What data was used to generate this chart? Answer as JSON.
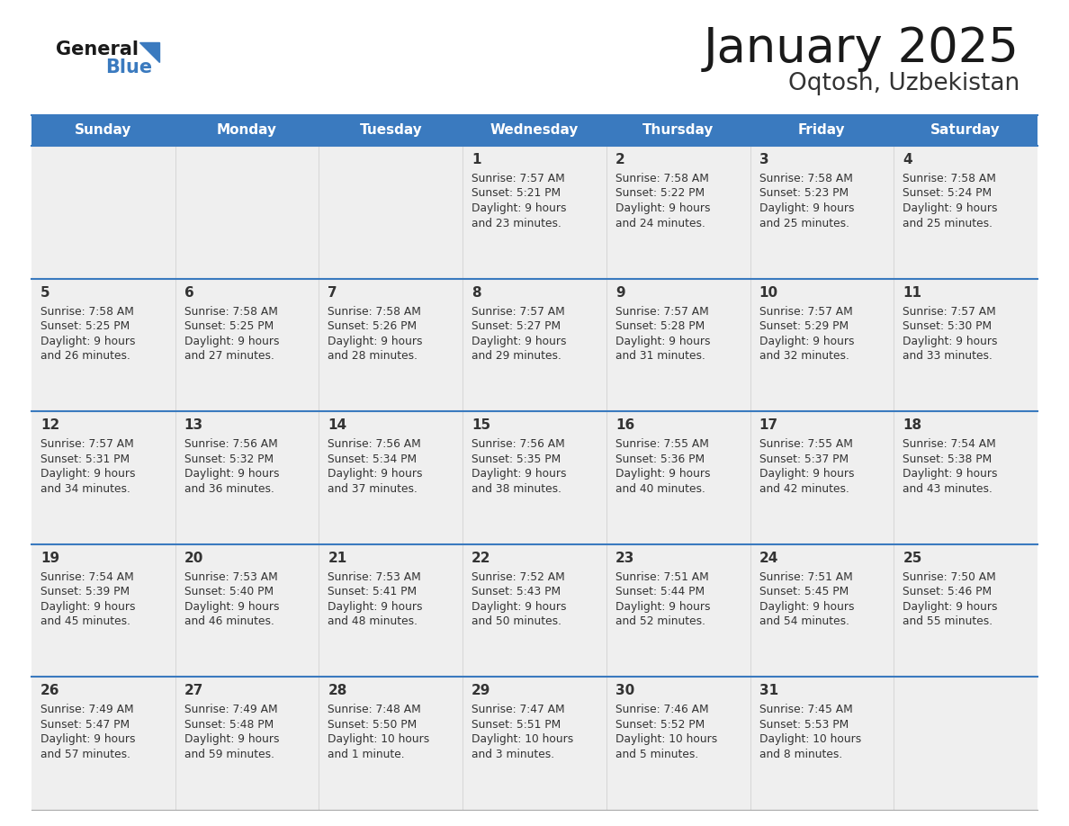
{
  "title": "January 2025",
  "subtitle": "Oqtosh, Uzbekistan",
  "days_of_week": [
    "Sunday",
    "Monday",
    "Tuesday",
    "Wednesday",
    "Thursday",
    "Friday",
    "Saturday"
  ],
  "header_bg": "#3a7abf",
  "header_text": "#ffffff",
  "cell_bg": "#efefef",
  "separator_color": "#3a7abf",
  "text_color": "#333333",
  "title_color": "#1a1a1a",
  "calendar_data": [
    [
      null,
      null,
      null,
      {
        "day": 1,
        "sunrise": "7:57 AM",
        "sunset": "5:21 PM",
        "dl1": "9 hours",
        "dl2": "and 23 minutes."
      },
      {
        "day": 2,
        "sunrise": "7:58 AM",
        "sunset": "5:22 PM",
        "dl1": "9 hours",
        "dl2": "and 24 minutes."
      },
      {
        "day": 3,
        "sunrise": "7:58 AM",
        "sunset": "5:23 PM",
        "dl1": "9 hours",
        "dl2": "and 25 minutes."
      },
      {
        "day": 4,
        "sunrise": "7:58 AM",
        "sunset": "5:24 PM",
        "dl1": "9 hours",
        "dl2": "and 25 minutes."
      }
    ],
    [
      {
        "day": 5,
        "sunrise": "7:58 AM",
        "sunset": "5:25 PM",
        "dl1": "9 hours",
        "dl2": "and 26 minutes."
      },
      {
        "day": 6,
        "sunrise": "7:58 AM",
        "sunset": "5:25 PM",
        "dl1": "9 hours",
        "dl2": "and 27 minutes."
      },
      {
        "day": 7,
        "sunrise": "7:58 AM",
        "sunset": "5:26 PM",
        "dl1": "9 hours",
        "dl2": "and 28 minutes."
      },
      {
        "day": 8,
        "sunrise": "7:57 AM",
        "sunset": "5:27 PM",
        "dl1": "9 hours",
        "dl2": "and 29 minutes."
      },
      {
        "day": 9,
        "sunrise": "7:57 AM",
        "sunset": "5:28 PM",
        "dl1": "9 hours",
        "dl2": "and 31 minutes."
      },
      {
        "day": 10,
        "sunrise": "7:57 AM",
        "sunset": "5:29 PM",
        "dl1": "9 hours",
        "dl2": "and 32 minutes."
      },
      {
        "day": 11,
        "sunrise": "7:57 AM",
        "sunset": "5:30 PM",
        "dl1": "9 hours",
        "dl2": "and 33 minutes."
      }
    ],
    [
      {
        "day": 12,
        "sunrise": "7:57 AM",
        "sunset": "5:31 PM",
        "dl1": "9 hours",
        "dl2": "and 34 minutes."
      },
      {
        "day": 13,
        "sunrise": "7:56 AM",
        "sunset": "5:32 PM",
        "dl1": "9 hours",
        "dl2": "and 36 minutes."
      },
      {
        "day": 14,
        "sunrise": "7:56 AM",
        "sunset": "5:34 PM",
        "dl1": "9 hours",
        "dl2": "and 37 minutes."
      },
      {
        "day": 15,
        "sunrise": "7:56 AM",
        "sunset": "5:35 PM",
        "dl1": "9 hours",
        "dl2": "and 38 minutes."
      },
      {
        "day": 16,
        "sunrise": "7:55 AM",
        "sunset": "5:36 PM",
        "dl1": "9 hours",
        "dl2": "and 40 minutes."
      },
      {
        "day": 17,
        "sunrise": "7:55 AM",
        "sunset": "5:37 PM",
        "dl1": "9 hours",
        "dl2": "and 42 minutes."
      },
      {
        "day": 18,
        "sunrise": "7:54 AM",
        "sunset": "5:38 PM",
        "dl1": "9 hours",
        "dl2": "and 43 minutes."
      }
    ],
    [
      {
        "day": 19,
        "sunrise": "7:54 AM",
        "sunset": "5:39 PM",
        "dl1": "9 hours",
        "dl2": "and 45 minutes."
      },
      {
        "day": 20,
        "sunrise": "7:53 AM",
        "sunset": "5:40 PM",
        "dl1": "9 hours",
        "dl2": "and 46 minutes."
      },
      {
        "day": 21,
        "sunrise": "7:53 AM",
        "sunset": "5:41 PM",
        "dl1": "9 hours",
        "dl2": "and 48 minutes."
      },
      {
        "day": 22,
        "sunrise": "7:52 AM",
        "sunset": "5:43 PM",
        "dl1": "9 hours",
        "dl2": "and 50 minutes."
      },
      {
        "day": 23,
        "sunrise": "7:51 AM",
        "sunset": "5:44 PM",
        "dl1": "9 hours",
        "dl2": "and 52 minutes."
      },
      {
        "day": 24,
        "sunrise": "7:51 AM",
        "sunset": "5:45 PM",
        "dl1": "9 hours",
        "dl2": "and 54 minutes."
      },
      {
        "day": 25,
        "sunrise": "7:50 AM",
        "sunset": "5:46 PM",
        "dl1": "9 hours",
        "dl2": "and 55 minutes."
      }
    ],
    [
      {
        "day": 26,
        "sunrise": "7:49 AM",
        "sunset": "5:47 PM",
        "dl1": "9 hours",
        "dl2": "and 57 minutes."
      },
      {
        "day": 27,
        "sunrise": "7:49 AM",
        "sunset": "5:48 PM",
        "dl1": "9 hours",
        "dl2": "and 59 minutes."
      },
      {
        "day": 28,
        "sunrise": "7:48 AM",
        "sunset": "5:50 PM",
        "dl1": "10 hours",
        "dl2": "and 1 minute."
      },
      {
        "day": 29,
        "sunrise": "7:47 AM",
        "sunset": "5:51 PM",
        "dl1": "10 hours",
        "dl2": "and 3 minutes."
      },
      {
        "day": 30,
        "sunrise": "7:46 AM",
        "sunset": "5:52 PM",
        "dl1": "10 hours",
        "dl2": "and 5 minutes."
      },
      {
        "day": 31,
        "sunrise": "7:45 AM",
        "sunset": "5:53 PM",
        "dl1": "10 hours",
        "dl2": "and 8 minutes."
      },
      null
    ]
  ]
}
